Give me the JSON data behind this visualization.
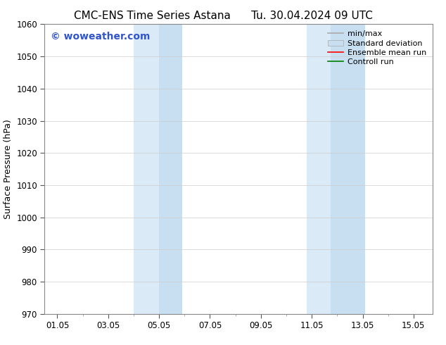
{
  "title_left": "CMC-ENS Time Series Astana",
  "title_right": "Tu. 30.04.2024 09 UTC",
  "ylabel": "Surface Pressure (hPa)",
  "xtick_labels": [
    "01.05",
    "03.05",
    "05.05",
    "07.05",
    "09.05",
    "11.05",
    "13.05",
    "15.05"
  ],
  "xtick_positions": [
    1,
    3,
    5,
    7,
    9,
    11,
    13,
    15
  ],
  "xlim": [
    0.5,
    15.75
  ],
  "ylim": [
    970,
    1060
  ],
  "ytick_positions": [
    970,
    980,
    990,
    1000,
    1010,
    1020,
    1030,
    1040,
    1050,
    1060
  ],
  "shaded_regions": [
    {
      "xmin": 4.0,
      "xmax": 5.0,
      "color": "#daeaf7"
    },
    {
      "xmin": 5.0,
      "xmax": 5.9,
      "color": "#c8dff2"
    },
    {
      "xmin": 10.8,
      "xmax": 11.75,
      "color": "#daeaf7"
    },
    {
      "xmin": 11.75,
      "xmax": 13.1,
      "color": "#c8dff2"
    }
  ],
  "watermark_text": "© woweather.com",
  "watermark_color": "#3355cc",
  "background_color": "#ffffff",
  "grid_color": "#cccccc",
  "legend_entries": [
    {
      "label": "min/max",
      "color": "#aaaaaa",
      "lw": 1.2,
      "style": "solid",
      "type": "line"
    },
    {
      "label": "Standard deviation",
      "color": "#c8dff2",
      "lw": 8,
      "style": "solid",
      "type": "patch"
    },
    {
      "label": "Ensemble mean run",
      "color": "#ff0000",
      "lw": 1.2,
      "style": "solid",
      "type": "line"
    },
    {
      "label": "Controll run",
      "color": "#008000",
      "lw": 1.2,
      "style": "solid",
      "type": "line"
    }
  ],
  "title_fontsize": 11,
  "axis_fontsize": 9,
  "tick_fontsize": 8.5,
  "watermark_fontsize": 10,
  "legend_fontsize": 8
}
